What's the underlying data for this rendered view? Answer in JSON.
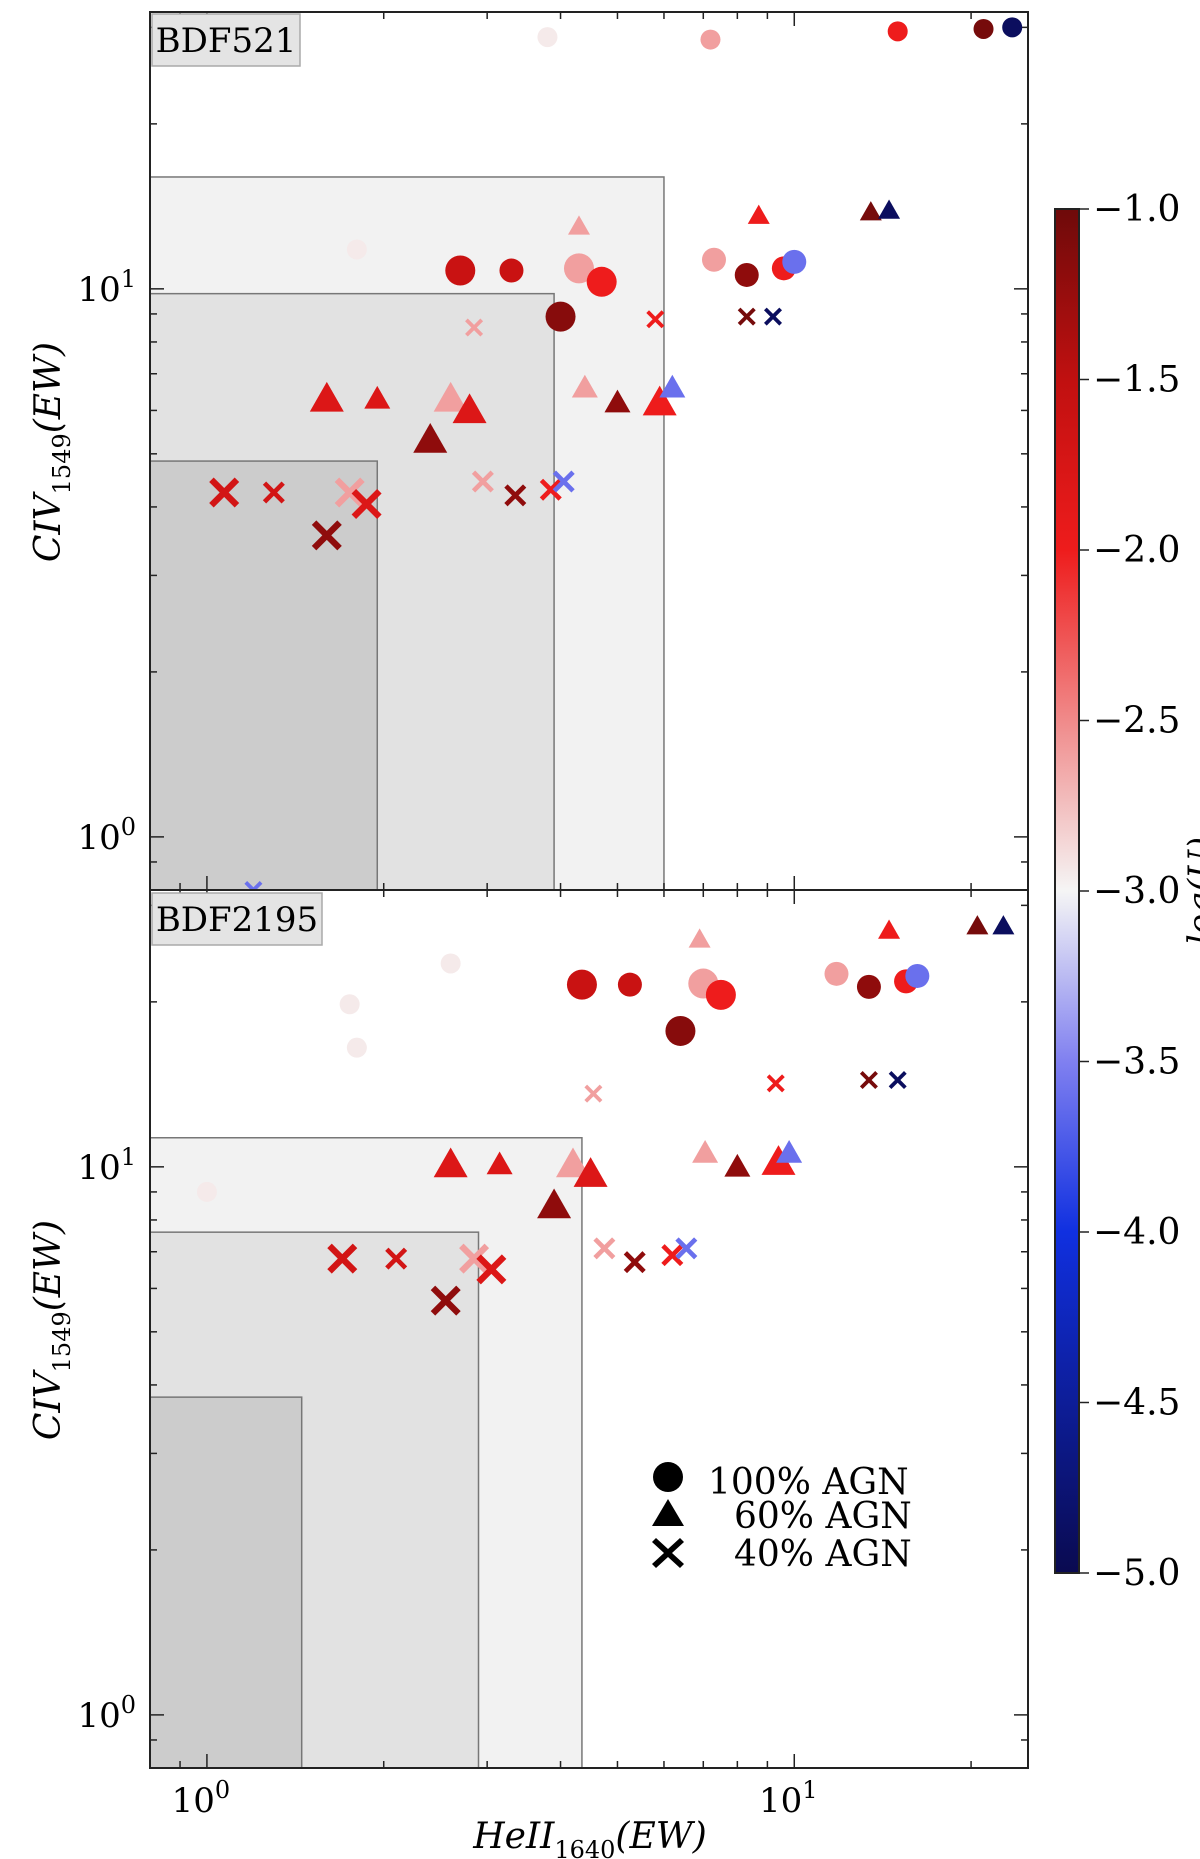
{
  "chart_data": {
    "type": "scatter",
    "xlabel": "HeII",
    "xlabel_sub": "1640",
    "xlabel_tail": "(EW)",
    "ylabel": "CIV",
    "ylabel_sub": "1549",
    "ylabel_tail": "(EW)",
    "xlim": [
      0.8,
      25
    ],
    "xscale": "log",
    "x_ticks": [
      {
        "base": "10",
        "exp": "0",
        "value": 1
      },
      {
        "base": "10",
        "exp": "1",
        "value": 10
      }
    ],
    "colorbar": {
      "label": "log(U)",
      "range": [
        -5.0,
        -1.0
      ],
      "ticks": [
        "−1.0",
        "−1.5",
        "−2.0",
        "−2.5",
        "−3.0",
        "−3.5",
        "−4.0",
        "−4.5",
        "−5.0"
      ],
      "tick_values": [
        -1.0,
        -1.5,
        -2.0,
        -2.5,
        -3.0,
        -3.5,
        -4.0,
        -4.5,
        -5.0
      ],
      "stops": [
        {
          "v": -5.0,
          "c": "#0a0a50"
        },
        {
          "v": -4.0,
          "c": "#1030e0"
        },
        {
          "v": -3.5,
          "c": "#8080f0"
        },
        {
          "v": -3.0,
          "c": "#f5f5f5"
        },
        {
          "v": -2.5,
          "c": "#f08a8a"
        },
        {
          "v": -2.0,
          "c": "#ee1c1c"
        },
        {
          "v": -1.5,
          "c": "#c01010"
        },
        {
          "v": -1.0,
          "c": "#6e0a0a"
        }
      ]
    },
    "legend": {
      "position": "lower-right of bottom panel",
      "entries": [
        {
          "marker": "circle",
          "label": "100% AGN"
        },
        {
          "marker": "triangle",
          "label": "60% AGN"
        },
        {
          "marker": "cross",
          "label": "40% AGN"
        }
      ]
    },
    "panels": [
      {
        "label": "BDF521",
        "ylim": [
          0.8,
          32
        ],
        "y_ticks": [
          {
            "base": "10",
            "exp": "0",
            "value": 1
          },
          {
            "base": "10",
            "exp": "1",
            "value": 10
          }
        ],
        "regions": [
          {
            "x_max": 6.0,
            "y_max": 16.0,
            "fill": "#f2f2f2"
          },
          {
            "x_max": 3.9,
            "y_max": 9.8,
            "fill": "#e2e2e2"
          },
          {
            "x_max": 1.95,
            "y_max": 4.85,
            "fill": "#cccccc"
          }
        ],
        "series": [
          {
            "name": "100% AGN",
            "marker": "circle",
            "points": [
              {
                "x": 2.7,
                "y": 10.8,
                "logU": -1.6,
                "size": "big"
              },
              {
                "x": 3.3,
                "y": 10.8,
                "logU": -1.6,
                "size": "med"
              },
              {
                "x": 4.0,
                "y": 8.9,
                "logU": -1.15,
                "size": "big"
              },
              {
                "x": 4.3,
                "y": 10.9,
                "logU": -2.6,
                "size": "big"
              },
              {
                "x": 4.7,
                "y": 10.3,
                "logU": -2.0,
                "size": "big"
              },
              {
                "x": 7.2,
                "y": 28.5,
                "logU": -2.6,
                "size": "small"
              },
              {
                "x": 7.3,
                "y": 11.3,
                "logU": -2.6,
                "size": "med"
              },
              {
                "x": 8.3,
                "y": 10.6,
                "logU": -1.2,
                "size": "med"
              },
              {
                "x": 9.6,
                "y": 10.9,
                "logU": -2.0,
                "size": "med"
              },
              {
                "x": 10.0,
                "y": 11.2,
                "logU": -3.6,
                "size": "med"
              },
              {
                "x": 15.0,
                "y": 29.5,
                "logU": -2.0,
                "size": "small"
              },
              {
                "x": 21.0,
                "y": 29.8,
                "logU": -1.05,
                "size": "small"
              },
              {
                "x": 23.5,
                "y": 30.0,
                "logU": -4.9,
                "size": "small"
              },
              {
                "x": 3.8,
                "y": 28.8,
                "logU": -2.95,
                "size": "small"
              },
              {
                "x": 1.8,
                "y": 11.8,
                "logU": -2.95,
                "size": "small"
              }
            ]
          },
          {
            "name": "60% AGN",
            "marker": "triangle",
            "points": [
              {
                "x": 1.6,
                "y": 6.3,
                "logU": -1.8,
                "size": "big"
              },
              {
                "x": 1.95,
                "y": 6.3,
                "logU": -1.8,
                "size": "med"
              },
              {
                "x": 2.4,
                "y": 5.3,
                "logU": -1.2,
                "size": "big"
              },
              {
                "x": 2.6,
                "y": 6.3,
                "logU": -2.6,
                "size": "big"
              },
              {
                "x": 2.8,
                "y": 6.0,
                "logU": -1.8,
                "size": "big"
              },
              {
                "x": 4.3,
                "y": 13.0,
                "logU": -2.6,
                "size": "small"
              },
              {
                "x": 4.4,
                "y": 6.6,
                "logU": -2.6,
                "size": "med"
              },
              {
                "x": 5.0,
                "y": 6.2,
                "logU": -1.2,
                "size": "med"
              },
              {
                "x": 5.9,
                "y": 6.2,
                "logU": -2.0,
                "size": "big"
              },
              {
                "x": 6.2,
                "y": 6.6,
                "logU": -3.6,
                "size": "med"
              },
              {
                "x": 8.7,
                "y": 13.6,
                "logU": -2.0,
                "size": "small"
              },
              {
                "x": 13.5,
                "y": 13.8,
                "logU": -1.05,
                "size": "small"
              },
              {
                "x": 14.5,
                "y": 13.9,
                "logU": -4.9,
                "size": "small"
              }
            ]
          },
          {
            "name": "40% AGN",
            "marker": "cross",
            "points": [
              {
                "x": 1.07,
                "y": 4.25,
                "logU": -1.7,
                "size": "big"
              },
              {
                "x": 1.3,
                "y": 4.25,
                "logU": -1.7,
                "size": "med"
              },
              {
                "x": 1.6,
                "y": 3.55,
                "logU": -1.2,
                "size": "big"
              },
              {
                "x": 1.75,
                "y": 4.25,
                "logU": -2.6,
                "size": "big"
              },
              {
                "x": 1.87,
                "y": 4.05,
                "logU": -1.8,
                "size": "big"
              },
              {
                "x": 2.85,
                "y": 8.5,
                "logU": -2.6,
                "size": "small"
              },
              {
                "x": 2.95,
                "y": 4.45,
                "logU": -2.6,
                "size": "med"
              },
              {
                "x": 3.35,
                "y": 4.2,
                "logU": -1.2,
                "size": "med"
              },
              {
                "x": 3.85,
                "y": 4.3,
                "logU": -2.0,
                "size": "med"
              },
              {
                "x": 4.05,
                "y": 4.45,
                "logU": -3.6,
                "size": "med"
              },
              {
                "x": 5.8,
                "y": 8.8,
                "logU": -2.0,
                "size": "small"
              },
              {
                "x": 8.3,
                "y": 8.9,
                "logU": -1.05,
                "size": "small"
              },
              {
                "x": 9.2,
                "y": 8.9,
                "logU": -4.9,
                "size": "small"
              },
              {
                "x": 1.2,
                "y": 0.8,
                "logU": -3.6,
                "size": "small"
              }
            ]
          }
        ]
      },
      {
        "label": "BDF2195",
        "ylim": [
          0.8,
          32
        ],
        "y_ticks": [
          {
            "base": "10",
            "exp": "0",
            "value": 1
          },
          {
            "base": "10",
            "exp": "1",
            "value": 10
          }
        ],
        "regions": [
          {
            "x_max": 4.35,
            "y_max": 11.3,
            "fill": "#f2f2f2"
          },
          {
            "x_max": 2.9,
            "y_max": 7.6,
            "fill": "#e2e2e2"
          },
          {
            "x_max": 1.45,
            "y_max": 3.8,
            "fill": "#cccccc"
          }
        ],
        "series": [
          {
            "name": "100% AGN",
            "marker": "circle",
            "points": [
              {
                "x": 4.35,
                "y": 21.5,
                "logU": -1.6,
                "size": "big"
              },
              {
                "x": 5.25,
                "y": 21.5,
                "logU": -1.6,
                "size": "med"
              },
              {
                "x": 6.4,
                "y": 17.7,
                "logU": -1.15,
                "size": "big"
              },
              {
                "x": 7.0,
                "y": 21.6,
                "logU": -2.6,
                "size": "big"
              },
              {
                "x": 7.5,
                "y": 20.6,
                "logU": -2.0,
                "size": "big"
              },
              {
                "x": 11.8,
                "y": 22.5,
                "logU": -2.6,
                "size": "med"
              },
              {
                "x": 13.4,
                "y": 21.3,
                "logU": -1.2,
                "size": "med"
              },
              {
                "x": 15.5,
                "y": 21.8,
                "logU": -2.0,
                "size": "med"
              },
              {
                "x": 16.2,
                "y": 22.3,
                "logU": -3.6,
                "size": "med"
              },
              {
                "x": 2.6,
                "y": 23.5,
                "logU": -2.95,
                "size": "small"
              },
              {
                "x": 1.75,
                "y": 19.8,
                "logU": -2.95,
                "size": "small"
              },
              {
                "x": 1.8,
                "y": 16.5,
                "logU": -2.95,
                "size": "small"
              },
              {
                "x": 1.0,
                "y": 9.0,
                "logU": -2.95,
                "size": "small"
              }
            ]
          },
          {
            "name": "60% AGN",
            "marker": "triangle",
            "points": [
              {
                "x": 2.6,
                "y": 10.1,
                "logU": -1.8,
                "size": "big"
              },
              {
                "x": 3.15,
                "y": 10.1,
                "logU": -1.8,
                "size": "med"
              },
              {
                "x": 3.9,
                "y": 8.5,
                "logU": -1.2,
                "size": "big"
              },
              {
                "x": 4.2,
                "y": 10.1,
                "logU": -2.6,
                "size": "big"
              },
              {
                "x": 4.5,
                "y": 9.7,
                "logU": -1.8,
                "size": "big"
              },
              {
                "x": 6.9,
                "y": 26.0,
                "logU": -2.6,
                "size": "small"
              },
              {
                "x": 7.05,
                "y": 10.6,
                "logU": -2.6,
                "size": "med"
              },
              {
                "x": 8.0,
                "y": 10.0,
                "logU": -1.2,
                "size": "med"
              },
              {
                "x": 9.4,
                "y": 10.2,
                "logU": -2.0,
                "size": "big"
              },
              {
                "x": 9.8,
                "y": 10.6,
                "logU": -3.6,
                "size": "med"
              },
              {
                "x": 14.5,
                "y": 27.0,
                "logU": -2.0,
                "size": "small"
              },
              {
                "x": 20.5,
                "y": 27.5,
                "logU": -1.05,
                "size": "small"
              },
              {
                "x": 22.7,
                "y": 27.5,
                "logU": -4.9,
                "size": "small"
              }
            ]
          },
          {
            "name": "40% AGN",
            "marker": "cross",
            "points": [
              {
                "x": 1.7,
                "y": 6.8,
                "logU": -1.7,
                "size": "big"
              },
              {
                "x": 2.1,
                "y": 6.8,
                "logU": -1.7,
                "size": "med"
              },
              {
                "x": 2.55,
                "y": 5.7,
                "logU": -1.2,
                "size": "big"
              },
              {
                "x": 2.85,
                "y": 6.8,
                "logU": -2.6,
                "size": "big"
              },
              {
                "x": 3.05,
                "y": 6.5,
                "logU": -1.8,
                "size": "big"
              },
              {
                "x": 4.55,
                "y": 13.6,
                "logU": -2.6,
                "size": "small"
              },
              {
                "x": 4.75,
                "y": 7.1,
                "logU": -2.6,
                "size": "med"
              },
              {
                "x": 5.35,
                "y": 6.7,
                "logU": -1.2,
                "size": "med"
              },
              {
                "x": 6.2,
                "y": 6.9,
                "logU": -2.0,
                "size": "med"
              },
              {
                "x": 6.55,
                "y": 7.1,
                "logU": -3.6,
                "size": "med"
              },
              {
                "x": 9.3,
                "y": 14.2,
                "logU": -2.0,
                "size": "small"
              },
              {
                "x": 13.4,
                "y": 14.4,
                "logU": -1.05,
                "size": "small"
              },
              {
                "x": 15.0,
                "y": 14.4,
                "logU": -4.9,
                "size": "small"
              }
            ]
          }
        ]
      }
    ]
  }
}
